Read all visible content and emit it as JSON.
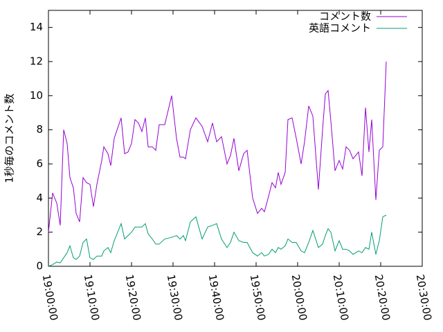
{
  "chart_data": {
    "type": "line",
    "y_label": "1秒毎のコメント数",
    "x": [
      "19:00:00",
      "19:01:00",
      "19:02:00",
      "19:02:50",
      "19:03:40",
      "19:04:30",
      "19:05:10",
      "19:06:00",
      "19:06:40",
      "19:07:30",
      "19:08:20",
      "19:09:10",
      "19:10:00",
      "19:10:50",
      "19:11:40",
      "19:12:50",
      "19:13:20",
      "19:14:20",
      "19:15:00",
      "19:15:50",
      "19:16:40",
      "19:17:30",
      "19:18:20",
      "19:19:10",
      "19:20:00",
      "19:20:50",
      "19:21:40",
      "19:22:30",
      "19:23:20",
      "19:24:00",
      "19:25:00",
      "19:25:50",
      "19:26:40",
      "19:28:00",
      "19:29:40",
      "19:30:50",
      "19:31:40",
      "19:32:30",
      "19:33:00",
      "19:34:10",
      "19:35:30",
      "19:37:00",
      "19:38:20",
      "19:39:30",
      "19:40:30",
      "19:41:40",
      "19:43:00",
      "19:43:50",
      "19:44:40",
      "19:45:50",
      "19:47:00",
      "19:47:50",
      "19:49:10",
      "19:50:20",
      "19:51:20",
      "19:52:00",
      "19:53:00",
      "19:53:50",
      "19:54:40",
      "19:55:20",
      "19:56:00",
      "19:57:00",
      "19:57:40",
      "19:58:40",
      "19:59:40",
      "20:00:50",
      "20:01:40",
      "20:02:40",
      "20:03:40",
      "20:05:00",
      "20:06:00",
      "20:06:40",
      "20:07:20",
      "20:08:00",
      "20:09:00",
      "20:10:00",
      "20:10:50",
      "20:11:40",
      "20:12:30",
      "20:13:20",
      "20:14:40",
      "20:15:30",
      "20:16:20",
      "20:17:10",
      "20:17:50",
      "20:18:50",
      "20:19:40",
      "20:20:30",
      "20:21:20"
    ],
    "series": [
      {
        "name": "コメント数",
        "color": "#9400d3",
        "values": [
          2.0,
          4.3,
          3.7,
          2.4,
          8.0,
          7.2,
          5.2,
          4.6,
          3.1,
          2.6,
          5.2,
          4.9,
          4.8,
          3.5,
          4.8,
          6.2,
          7.0,
          6.6,
          5.9,
          7.5,
          8.1,
          8.7,
          6.6,
          6.7,
          7.2,
          8.6,
          8.4,
          7.9,
          8.7,
          7.0,
          7.0,
          6.8,
          8.3,
          8.3,
          10.0,
          7.5,
          6.4,
          6.4,
          6.3,
          8.0,
          8.7,
          8.2,
          7.3,
          8.4,
          7.3,
          7.6,
          6.0,
          6.5,
          7.5,
          5.6,
          6.6,
          6.8,
          4.0,
          3.1,
          3.4,
          3.2,
          4.1,
          4.9,
          4.6,
          5.5,
          4.8,
          5.5,
          8.6,
          8.7,
          7.5,
          6.0,
          7.3,
          9.4,
          8.8,
          4.5,
          8.0,
          10.1,
          10.3,
          8.5,
          5.6,
          6.2,
          5.7,
          7.0,
          6.8,
          6.3,
          6.7,
          5.3,
          9.3,
          6.7,
          8.6,
          3.9,
          6.8,
          7.0,
          12.0
        ]
      },
      {
        "name": "英語コメント",
        "color": "#009e73",
        "values": [
          0,
          0.1,
          0.25,
          0.2,
          0.5,
          0.8,
          1.2,
          0.5,
          0.4,
          0.6,
          1.4,
          1.6,
          0.5,
          0.4,
          0.6,
          0.6,
          0.9,
          1.1,
          0.8,
          1.5,
          2.0,
          2.5,
          1.6,
          1.8,
          2.0,
          2.3,
          2.3,
          2.3,
          2.5,
          1.9,
          1.6,
          1.3,
          1.3,
          1.6,
          1.7,
          1.8,
          1.6,
          1.8,
          1.5,
          2.6,
          2.9,
          1.6,
          2.3,
          2.4,
          2.5,
          1.6,
          1.1,
          1.4,
          2.0,
          1.5,
          1.4,
          1.4,
          0.8,
          0.6,
          0.8,
          0.6,
          0.7,
          1.0,
          0.8,
          1.1,
          1.0,
          1.2,
          1.6,
          1.4,
          1.4,
          0.9,
          0.8,
          1.4,
          2.1,
          1.1,
          1.3,
          1.8,
          2.2,
          2.0,
          0.9,
          1.5,
          1.0,
          1.0,
          0.9,
          0.7,
          0.9,
          0.8,
          1.1,
          1.0,
          2.0,
          0.7,
          1.5,
          2.9,
          3.0
        ]
      }
    ],
    "xlim": [
      "19:00:00",
      "20:30:00"
    ],
    "xticks": [
      "19:00:00",
      "19:10:00",
      "19:20:00",
      "19:30:00",
      "19:40:00",
      "19:50:00",
      "20:00:00",
      "20:10:00",
      "20:20:00",
      "20:30:00"
    ],
    "ylim": [
      0,
      15
    ],
    "yticks": [
      0,
      2,
      4,
      6,
      8,
      10,
      12,
      14
    ],
    "legend": "upper right"
  }
}
